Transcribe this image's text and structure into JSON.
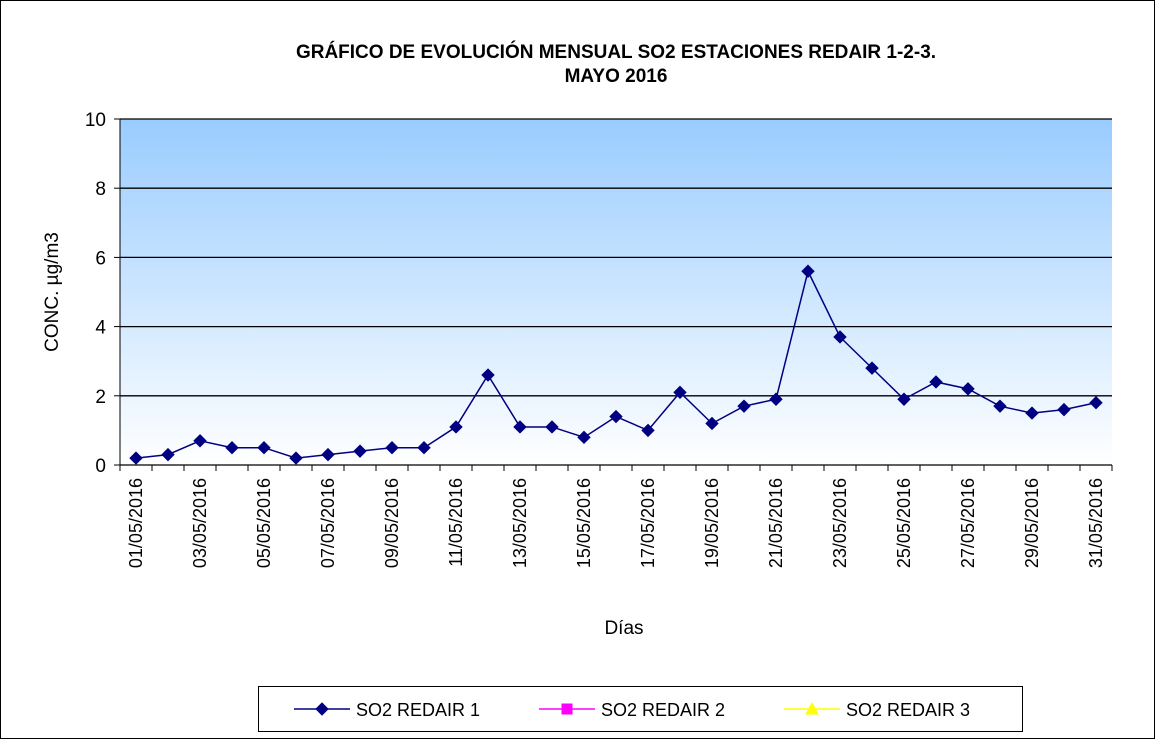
{
  "chart_data": {
    "type": "line",
    "title": [
      "GRÁFICO DE EVOLUCIÓN MENSUAL SO2 ESTACIONES REDAIR 1-2-3.",
      "MAYO 2016"
    ],
    "x_label": "Días",
    "y_label": "CONC.  µg/m3",
    "categories": [
      "01/05/2016",
      null,
      "03/05/2016",
      null,
      "05/05/2016",
      null,
      "07/05/2016",
      null,
      "09/05/2016",
      null,
      "11/05/2016",
      null,
      "13/05/2016",
      null,
      "15/05/2016",
      null,
      "17/05/2016",
      null,
      "19/05/2016",
      null,
      "21/05/2016",
      null,
      "23/05/2016",
      null,
      "25/05/2016",
      null,
      "27/05/2016",
      null,
      "29/05/2016",
      null,
      "31/05/2016"
    ],
    "series": [
      {
        "name": "SO2 REDAIR 1",
        "color": "#000080",
        "marker": "diamond",
        "values": [
          0.2,
          0.3,
          0.7,
          0.5,
          0.5,
          0.2,
          0.3,
          0.4,
          0.5,
          0.5,
          1.1,
          2.6,
          1.1,
          1.1,
          0.8,
          1.4,
          1.0,
          2.1,
          1.2,
          1.7,
          1.9,
          5.6,
          3.7,
          2.8,
          1.9,
          2.4,
          2.2,
          1.7,
          1.5,
          1.6,
          1.8
        ]
      },
      {
        "name": "SO2 REDAIR 2",
        "color": "#ff00ff",
        "marker": "square",
        "values": [
          null,
          null,
          null,
          null,
          null,
          null,
          null,
          null,
          null,
          null,
          null,
          null,
          null,
          null,
          null,
          null,
          null,
          null,
          null,
          null,
          null,
          null,
          null,
          null,
          null,
          null,
          null,
          null,
          null,
          null,
          null
        ]
      },
      {
        "name": "SO2 REDAIR 3",
        "color": "#ffff00",
        "marker": "triangle",
        "values": [
          null,
          null,
          null,
          null,
          null,
          null,
          null,
          null,
          null,
          null,
          null,
          null,
          null,
          null,
          null,
          null,
          null,
          null,
          null,
          null,
          null,
          null,
          null,
          null,
          null,
          null,
          null,
          null,
          null,
          null,
          null
        ]
      }
    ],
    "ylim": [
      0,
      10
    ],
    "yticks": [
      0,
      2,
      4,
      6,
      8,
      10
    ],
    "grid": true,
    "legend": "bottom"
  }
}
